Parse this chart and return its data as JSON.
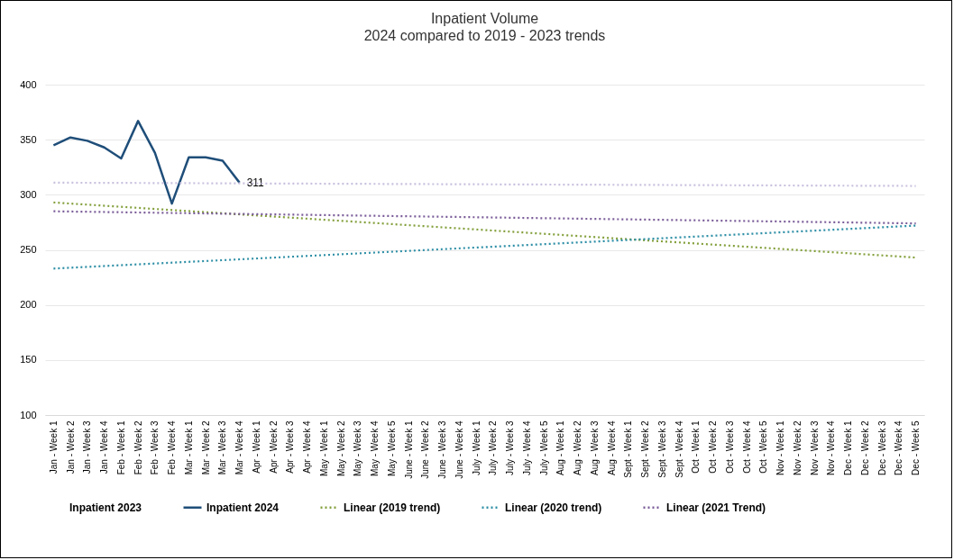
{
  "chart_data": {
    "type": "line",
    "title": "Inpatient Volume",
    "subtitle": "2024 compared to 2019 - 2023 trends",
    "categories": [
      "Jan - Week 1",
      "Jan - Week 2",
      "Jan - Week 3",
      "Jan - Week 4",
      "Feb - Week 1",
      "Feb - Week 2",
      "Feb - Week 3",
      "Feb - Week 4",
      "Mar - Week 1",
      "Mar - Week 2",
      "Mar - Week 3",
      "Mar - Week 4",
      "Apr - Week 1",
      "Apr - Week 2",
      "Apr - Week 3",
      "Apr - Week 4",
      "May - Week 1",
      "May - Week 2",
      "May - Week 3",
      "May - Week 4",
      "May - Week 5",
      "June - Week 1",
      "June - Week 2",
      "June - Week 3",
      "June - Week 4",
      "July - Week 1",
      "July - Week 2",
      "July - Week 3",
      "July - Week 4",
      "July - Week 5",
      "Aug - Week 1",
      "Aug - Week 2",
      "Aug - Week 3",
      "Aug - Week 4",
      "Sept - Week 1",
      "Sept - Week 2",
      "Sept - Week 3",
      "Sept - Week 4",
      "Oct - Week 1",
      "Oct - Week 2",
      "Oct - Week 3",
      "Oct - Week 4",
      "Oct - Week 5",
      "Nov - Week 1",
      "Nov - Week 2",
      "Nov - Week 3",
      "Nov - Week 4",
      "Dec - Week 1",
      "Dec - Week 2",
      "Dec - Week 3",
      "Dec - Week 4",
      "Dec - Week 5"
    ],
    "series": [
      {
        "name": "Inpatient 2023",
        "line_style": "solid",
        "values": [
          null,
          null,
          null,
          null,
          null,
          null,
          null,
          null,
          null,
          null,
          null,
          null,
          null,
          null,
          null,
          null,
          null,
          null,
          null,
          null,
          null,
          null,
          null,
          null,
          null,
          null,
          null,
          null,
          null,
          null,
          null,
          null,
          null,
          null,
          null,
          null,
          null,
          null,
          null,
          null,
          null,
          null,
          null,
          null,
          null,
          null,
          null,
          null,
          null,
          null,
          null,
          null
        ]
      },
      {
        "name": "Inpatient 2024",
        "color": "#1f4e79",
        "line_style": "solid",
        "values": [
          345,
          352,
          349,
          343,
          333,
          367,
          338,
          292,
          334,
          334,
          331,
          311,
          null,
          null,
          null,
          null,
          null,
          null,
          null,
          null,
          null,
          null,
          null,
          null,
          null,
          null,
          null,
          null,
          null,
          null,
          null,
          null,
          null,
          null,
          null,
          null,
          null,
          null,
          null,
          null,
          null,
          null,
          null,
          null,
          null,
          null,
          null,
          null,
          null,
          null,
          null,
          null
        ],
        "value_labels": [
          null,
          null,
          null,
          null,
          null,
          null,
          null,
          null,
          null,
          null,
          null,
          "311",
          null,
          null,
          null,
          null,
          null,
          null,
          null,
          null,
          null,
          null,
          null,
          null,
          null,
          null,
          null,
          null,
          null,
          null,
          null,
          null,
          null,
          null,
          null,
          null,
          null,
          null,
          null,
          null,
          null,
          null,
          null,
          null,
          null,
          null,
          null,
          null,
          null,
          null,
          null,
          null
        ]
      },
      {
        "name": "Linear (2019 trend)",
        "color": "#84a03c",
        "line_style": "dotted",
        "x": [
          "Jan - Week 1",
          "Dec - Week 5"
        ],
        "values": [
          293,
          243
        ]
      },
      {
        "name": "Linear (2020 trend)",
        "color": "#2e8fa6",
        "line_style": "dotted",
        "x": [
          "Jan - Week 1",
          "Dec - Week 5"
        ],
        "values": [
          233,
          272
        ]
      },
      {
        "name": "Linear (2021 Trend)",
        "color": "#7a5c99",
        "line_style": "dotted",
        "x": [
          "Jan - Week 1",
          "Dec - Week 5"
        ],
        "values": [
          285,
          274
        ]
      },
      {
        "color": "#c9c0de",
        "line_style": "dotted",
        "x": [
          "Jan - Week 1",
          "Dec - Week 5"
        ],
        "values": [
          311,
          308
        ]
      }
    ],
    "ylim": [
      100,
      400
    ],
    "yticks": [
      100,
      150,
      200,
      250,
      300,
      350,
      400
    ],
    "grid": "y",
    "legend": "bottom",
    "marker": "none"
  }
}
